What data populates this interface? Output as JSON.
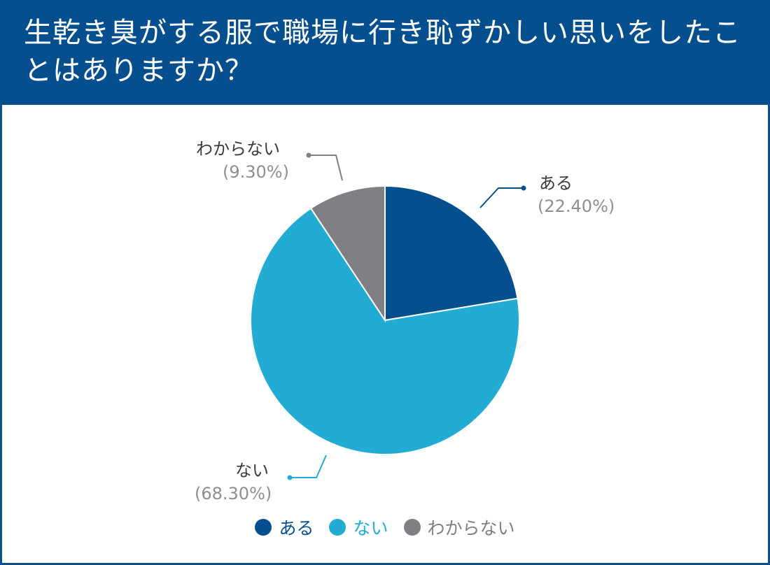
{
  "header": {
    "title": "生乾き臭がする服で職場に行き恥ずかしい思いをしたことはありますか？"
  },
  "colors": {
    "header_bg": "#064f8e",
    "series": [
      "#064f8e",
      "#22acd4",
      "#807f84"
    ],
    "slice_border": "#ffffff"
  },
  "chart_data": {
    "type": "pie",
    "title": "生乾き臭がする服で職場に行き恥ずかしい思いをしたことはありますか？",
    "start_angle_deg": 0,
    "direction": "clockwise",
    "slices": [
      {
        "label": "ある",
        "value": 22.4,
        "display": "(22.40%)",
        "color": "#064f8e"
      },
      {
        "label": "ない",
        "value": 68.3,
        "display": "(68.30%)",
        "color": "#22acd4"
      },
      {
        "label": "わからない",
        "value": 9.3,
        "display": "(9.30%)",
        "color": "#807f84"
      }
    ],
    "legend": {
      "placement": "bottom",
      "entries": [
        "ある",
        "ない",
        "わからない"
      ]
    }
  }
}
